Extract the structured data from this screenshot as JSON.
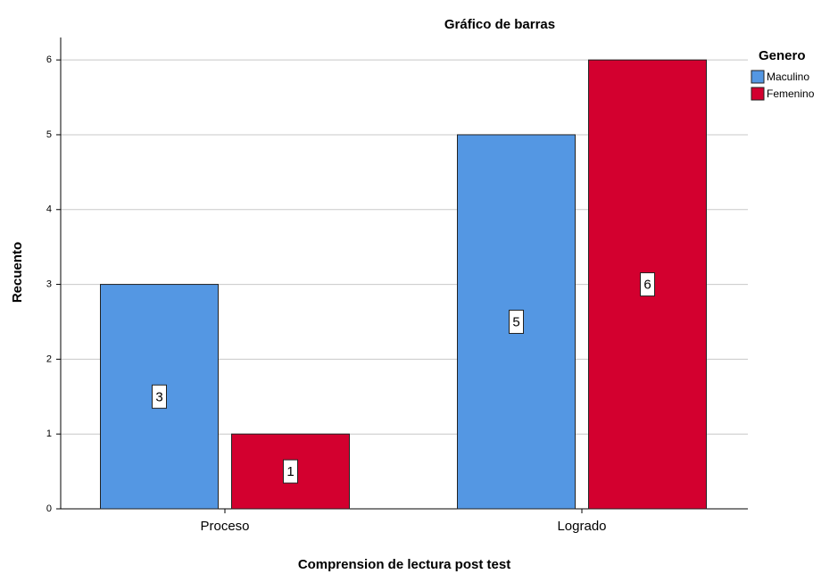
{
  "chart_data": {
    "type": "bar",
    "title": "Gráfico de barras",
    "x_label": "Comprension de lectura post test",
    "y_label": "Recuento",
    "categories": [
      "Proceso",
      "Logrado"
    ],
    "legend_title": "Genero",
    "series": [
      {
        "name": "Maculino",
        "color": "#5497e3",
        "values": [
          3,
          5
        ]
      },
      {
        "name": "Femenino",
        "color": "#d3002f",
        "values": [
          1,
          6
        ]
      }
    ],
    "ylim": [
      0,
      6.3
    ],
    "yticks": [
      0,
      1,
      2,
      3,
      4,
      5,
      6
    ],
    "grid": true,
    "legend": "upper right"
  }
}
